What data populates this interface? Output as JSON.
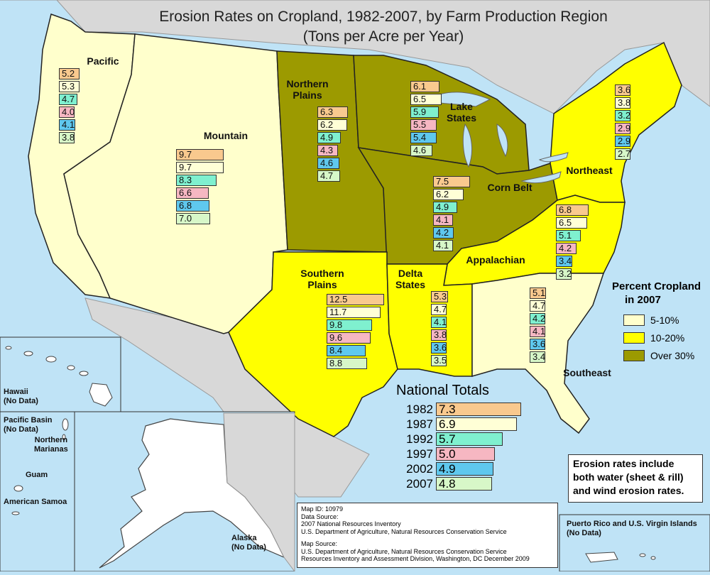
{
  "title": {
    "line1": "Erosion Rates on Cropland, 1982-2007, by Farm Production Region",
    "line2": "(Tons per Acre per Year)"
  },
  "years": [
    "1982",
    "1987",
    "1992",
    "1997",
    "2002",
    "2007"
  ],
  "year_colors": [
    "#f9c98e",
    "#ffffd6",
    "#7ff0cf",
    "#f6b7c2",
    "#5fc8ee",
    "#d7f7c8"
  ],
  "percent_colors": {
    "5-10%": "#ffffcc",
    "10-20%": "#ffff00",
    "Over 30%": "#9c9a00"
  },
  "regions": [
    {
      "name": "Pacific",
      "label": "Pacific",
      "percent": "5-10%",
      "values": [
        "5.2",
        "5.3",
        "4.7",
        "4.0",
        "4.1",
        "3.8"
      ]
    },
    {
      "name": "Mountain",
      "label": "Mountain",
      "percent": "5-10%",
      "values": [
        "9.7",
        "9.7",
        "8.3",
        "6.6",
        "6.8",
        "7.0"
      ]
    },
    {
      "name": "Northern Plains",
      "label": "Northern Plains",
      "percent": "Over 30%",
      "values": [
        "6.3",
        "6.2",
        "4.9",
        "4.3",
        "4.6",
        "4.7"
      ]
    },
    {
      "name": "Lake States",
      "label": "Lake States",
      "percent": "Over 30%",
      "values": [
        "6.1",
        "6.5",
        "5.9",
        "5.5",
        "5.4",
        "4.6"
      ]
    },
    {
      "name": "Corn Belt",
      "label": "Corn Belt",
      "percent": "Over 30%",
      "values": [
        "7.5",
        "6.2",
        "4.9",
        "4.1",
        "4.2",
        "4.1"
      ]
    },
    {
      "name": "Northeast",
      "label": "Northeast",
      "percent": "10-20%",
      "values": [
        "3.6",
        "3.8",
        "3.2",
        "2.9",
        "2.9",
        "2.7"
      ]
    },
    {
      "name": "Appalachian",
      "label": "Appalachian",
      "percent": "10-20%",
      "values": [
        "6.8",
        "6.5",
        "5.1",
        "4.2",
        "3.4",
        "3.2"
      ]
    },
    {
      "name": "Southern Plains",
      "label": "Southern Plains",
      "percent": "10-20%",
      "values": [
        "12.5",
        "11.7",
        "9.8",
        "9.6",
        "8.4",
        "8.8"
      ]
    },
    {
      "name": "Delta States",
      "label": "Delta States",
      "percent": "10-20%",
      "values": [
        "5.3",
        "4.7",
        "4.1",
        "3.8",
        "3.6",
        "3.5"
      ]
    },
    {
      "name": "Southeast",
      "label": "Southeast",
      "percent": "5-10%",
      "values": [
        "5.1",
        "4.7",
        "4.2",
        "4.1",
        "3.6",
        "3.4"
      ]
    }
  ],
  "national": {
    "heading": "National Totals",
    "values": [
      "7.3",
      "6.9",
      "5.7",
      "5.0",
      "4.9",
      "4.8"
    ]
  },
  "legend": {
    "heading_line1": "Percent Cropland",
    "heading_line2": "in 2007",
    "items": [
      {
        "label": "5-10%",
        "color": "#ffffcc"
      },
      {
        "label": "10-20%",
        "color": "#ffff00"
      },
      {
        "label": "Over 30%",
        "color": "#9c9a00"
      }
    ]
  },
  "insets": {
    "hawaii": "Hawaii",
    "hawaii_note": "(No Data)",
    "pacific_basin": "Pacific Basin",
    "pacific_basin_note": "(No Data)",
    "northern_marianas_1": "Northern",
    "northern_marianas_2": "Marianas",
    "guam": "Guam",
    "american_samoa": "American Samoa",
    "alaska": "Alaska",
    "alaska_note": "(No Data)",
    "puerto_rico": "Puerto Rico and U.S. Virgin Islands",
    "puerto_rico_note": "(No Data)"
  },
  "note": "Erosion rates include both water (sheet & rill) and wind erosion rates.",
  "source": {
    "map_id": "Map ID:  10979",
    "data_source_label": "Data Source:",
    "data_source_1": "2007 National Resources Inventory",
    "data_source_2": "U.S. Department of Agriculture, Natural Resources Conservation Service",
    "map_source_label": "Map Source:",
    "map_source_1": "U.S. Department of Agriculture, Natural Resources Conservation Service",
    "map_source_2": "Resources Inventory and Assessment Division, Washington, DC     December 2009"
  }
}
